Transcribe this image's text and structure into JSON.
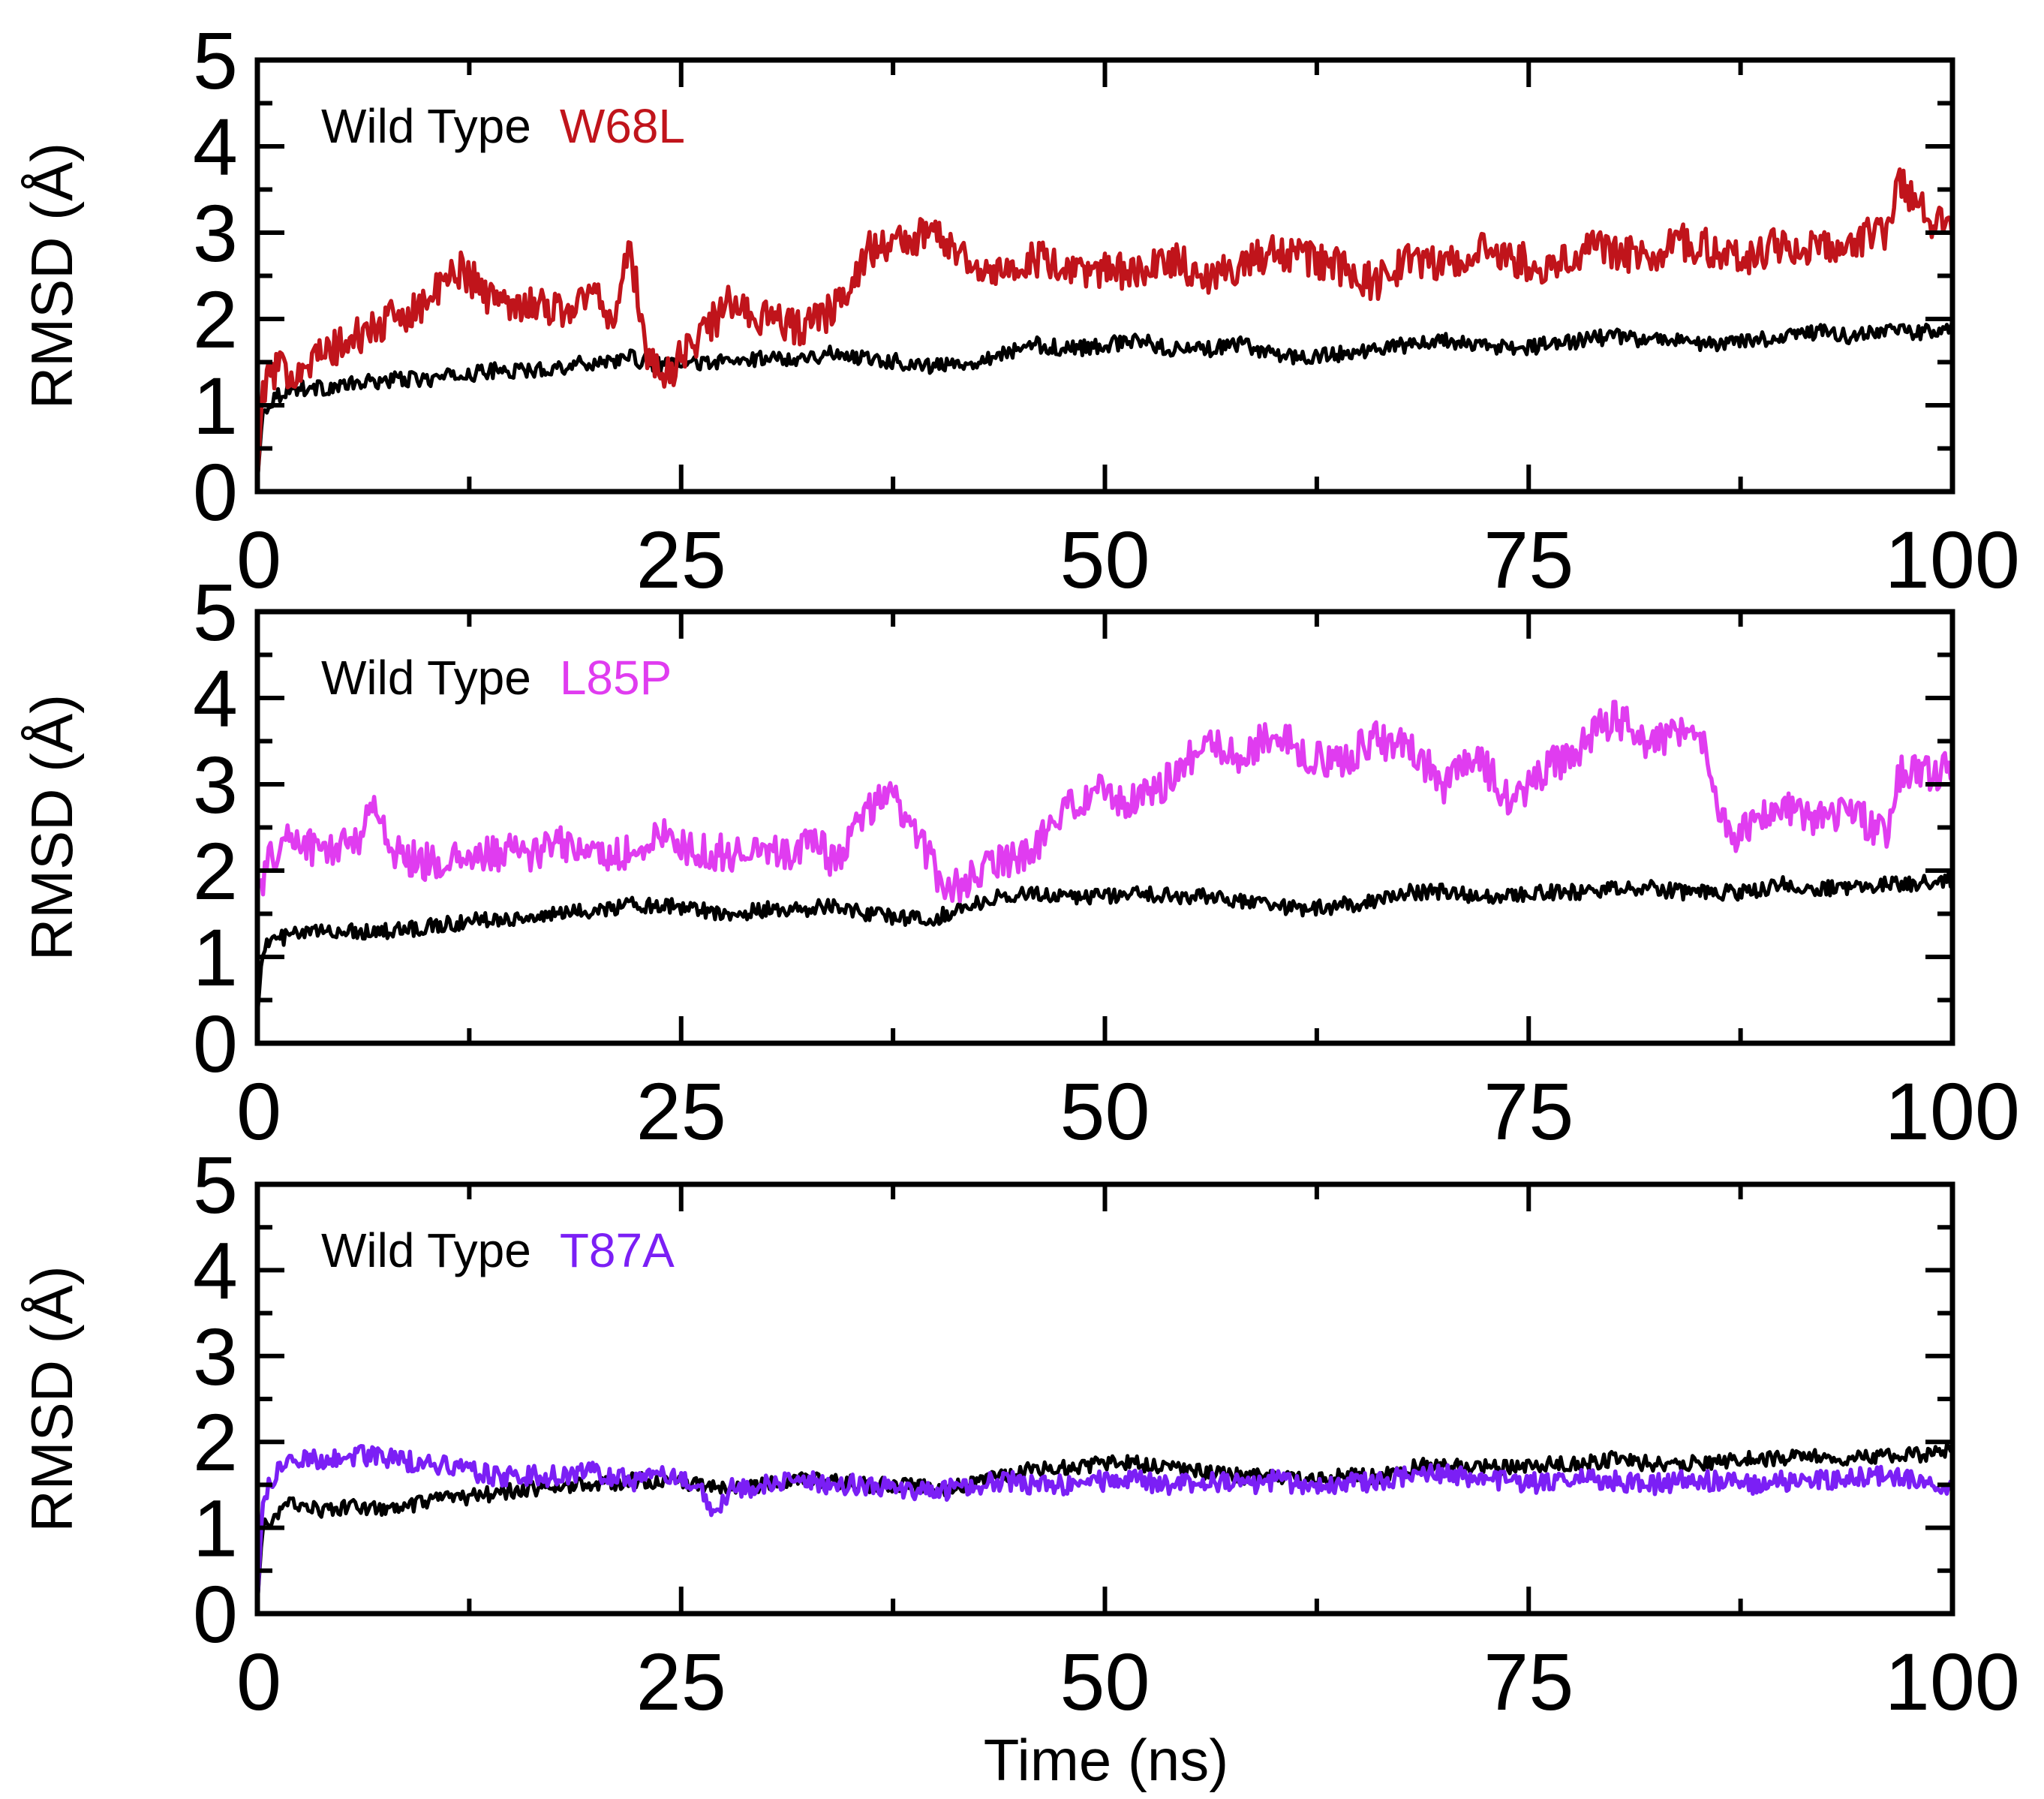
{
  "figure": {
    "xlabel": "Time (ns)"
  },
  "chart_data": [
    {
      "type": "line",
      "title": "",
      "xlabel": "",
      "ylabel": "RMSD (Å)",
      "xlim": [
        0,
        100
      ],
      "ylim": [
        0,
        5
      ],
      "xticks": [
        "0",
        "25",
        "50",
        "75",
        "100"
      ],
      "yticks": [
        "0",
        "1",
        "2",
        "3",
        "4",
        "5"
      ],
      "legend_position": "top-left",
      "grid": false,
      "series": [
        {
          "name": "Wild Type",
          "color": "#000000",
          "x": [
            0,
            0.3,
            1,
            2,
            4,
            6,
            8,
            10,
            12,
            14,
            16,
            18,
            20,
            22,
            24,
            26,
            28,
            30,
            32,
            34,
            36,
            38,
            40,
            42,
            44,
            46,
            48,
            50,
            52,
            54,
            56,
            58,
            60,
            62,
            64,
            66,
            68,
            70,
            72,
            74,
            76,
            78,
            80,
            82,
            84,
            86,
            88,
            90,
            92,
            94,
            96,
            98,
            100
          ],
          "y": [
            0.1,
            0.9,
            1.1,
            1.2,
            1.2,
            1.25,
            1.3,
            1.3,
            1.35,
            1.4,
            1.4,
            1.45,
            1.5,
            1.55,
            1.45,
            1.5,
            1.5,
            1.55,
            1.55,
            1.6,
            1.55,
            1.5,
            1.45,
            1.5,
            1.6,
            1.7,
            1.65,
            1.7,
            1.75,
            1.65,
            1.65,
            1.7,
            1.6,
            1.55,
            1.6,
            1.65,
            1.7,
            1.75,
            1.7,
            1.65,
            1.7,
            1.75,
            1.8,
            1.75,
            1.75,
            1.7,
            1.75,
            1.8,
            1.85,
            1.8,
            1.85,
            1.85,
            1.9
          ]
        },
        {
          "name": "W68L",
          "color": "#c0141b",
          "x": [
            0,
            0.3,
            1,
            2,
            4,
            6,
            8,
            10,
            12,
            14,
            16,
            18,
            20,
            21,
            22,
            23,
            24,
            26,
            28,
            30,
            32,
            34,
            36,
            38,
            40,
            42,
            44,
            46,
            48,
            50,
            52,
            54,
            56,
            58,
            60,
            62,
            64,
            66,
            68,
            70,
            72,
            74,
            76,
            78,
            80,
            82,
            84,
            86,
            88,
            90,
            92,
            94,
            96,
            97,
            98,
            99,
            100
          ],
          "y": [
            0.1,
            1.2,
            1.4,
            1.4,
            1.6,
            1.8,
            2.0,
            2.2,
            2.6,
            2.2,
            2.2,
            2.1,
            2.3,
            2.0,
            2.8,
            1.6,
            1.3,
            1.8,
            2.2,
            2.0,
            1.9,
            2.1,
            2.8,
            2.9,
            3.0,
            2.7,
            2.5,
            2.7,
            2.5,
            2.6,
            2.5,
            2.7,
            2.5,
            2.6,
            2.8,
            2.7,
            2.6,
            2.4,
            2.7,
            2.6,
            2.8,
            2.7,
            2.6,
            2.8,
            2.8,
            2.7,
            2.9,
            2.8,
            2.7,
            2.9,
            2.8,
            2.9,
            3.0,
            3.6,
            3.3,
            3.1,
            3.0
          ]
        }
      ]
    },
    {
      "type": "line",
      "title": "",
      "xlabel": "",
      "ylabel": "RMSD (Å)",
      "xlim": [
        0,
        100
      ],
      "ylim": [
        0,
        5
      ],
      "xticks": [
        "0",
        "25",
        "50",
        "75",
        "100"
      ],
      "yticks": [
        "0",
        "1",
        "2",
        "3",
        "4",
        "5"
      ],
      "legend_position": "top-left",
      "grid": false,
      "series": [
        {
          "name": "Wild Type",
          "color": "#000000",
          "x": [
            0,
            0.3,
            1,
            2,
            4,
            6,
            8,
            10,
            12,
            14,
            16,
            18,
            20,
            22,
            24,
            26,
            28,
            30,
            32,
            34,
            36,
            38,
            40,
            42,
            44,
            46,
            48,
            50,
            52,
            54,
            56,
            58,
            60,
            62,
            64,
            66,
            68,
            70,
            72,
            74,
            76,
            78,
            80,
            82,
            84,
            86,
            88,
            90,
            92,
            94,
            96,
            98,
            100
          ],
          "y": [
            0.3,
            1.1,
            1.2,
            1.25,
            1.3,
            1.3,
            1.3,
            1.35,
            1.4,
            1.45,
            1.45,
            1.5,
            1.55,
            1.6,
            1.6,
            1.55,
            1.5,
            1.55,
            1.55,
            1.6,
            1.5,
            1.45,
            1.45,
            1.6,
            1.7,
            1.75,
            1.7,
            1.7,
            1.75,
            1.7,
            1.7,
            1.65,
            1.6,
            1.55,
            1.6,
            1.65,
            1.75,
            1.75,
            1.7,
            1.7,
            1.75,
            1.75,
            1.8,
            1.8,
            1.75,
            1.75,
            1.75,
            1.85,
            1.8,
            1.8,
            1.85,
            1.85,
            1.9
          ]
        },
        {
          "name": "L85P",
          "color": "#e03cf0",
          "x": [
            0,
            1,
            2,
            4,
            6,
            7,
            8,
            10,
            12,
            14,
            16,
            18,
            20,
            22,
            24,
            26,
            28,
            30,
            32,
            33,
            34,
            36,
            37,
            38,
            40,
            41,
            42,
            44,
            46,
            48,
            50,
            52,
            54,
            56,
            58,
            60,
            62,
            64,
            66,
            68,
            70,
            72,
            74,
            76,
            78,
            79,
            80,
            82,
            84,
            85,
            86,
            87,
            88,
            90,
            92,
            94,
            96,
            97,
            98,
            100
          ],
          "y": [
            1.8,
            2.2,
            2.4,
            2.2,
            2.4,
            2.8,
            2.2,
            2.1,
            2.1,
            2.2,
            2.2,
            2.3,
            2.2,
            2.2,
            2.4,
            2.2,
            2.2,
            2.3,
            2.2,
            2.4,
            2.1,
            2.7,
            2.9,
            2.7,
            2.0,
            1.8,
            1.9,
            2.1,
            2.3,
            2.8,
            2.9,
            2.8,
            3.1,
            3.5,
            3.3,
            3.6,
            3.3,
            3.3,
            3.5,
            3.4,
            3.0,
            3.3,
            2.8,
            3.2,
            3.4,
            3.6,
            3.8,
            3.5,
            3.6,
            3.7,
            2.8,
            2.3,
            2.5,
            2.8,
            2.6,
            2.7,
            2.4,
            3.2,
            3.1,
            3.2
          ]
        }
      ]
    },
    {
      "type": "line",
      "title": "",
      "xlabel": "Time (ns)",
      "ylabel": "RMSD (Å)",
      "xlim": [
        0,
        100
      ],
      "ylim": [
        0,
        5
      ],
      "xticks": [
        "0",
        "25",
        "50",
        "75",
        "100"
      ],
      "yticks": [
        "0",
        "1",
        "2",
        "3",
        "4",
        "5"
      ],
      "legend_position": "top-left",
      "grid": false,
      "series": [
        {
          "name": "Wild Type",
          "color": "#000000",
          "x": [
            0,
            0.3,
            1,
            2,
            4,
            6,
            8,
            10,
            12,
            14,
            16,
            18,
            20,
            22,
            24,
            26,
            28,
            30,
            32,
            34,
            36,
            38,
            40,
            42,
            44,
            46,
            48,
            50,
            52,
            54,
            56,
            58,
            60,
            62,
            64,
            66,
            68,
            70,
            72,
            74,
            76,
            78,
            80,
            82,
            84,
            86,
            88,
            90,
            92,
            94,
            96,
            98,
            100
          ],
          "y": [
            0.1,
            1.0,
            1.1,
            1.3,
            1.2,
            1.25,
            1.2,
            1.3,
            1.35,
            1.4,
            1.45,
            1.5,
            1.5,
            1.55,
            1.55,
            1.5,
            1.45,
            1.5,
            1.55,
            1.55,
            1.5,
            1.5,
            1.45,
            1.5,
            1.6,
            1.7,
            1.7,
            1.75,
            1.75,
            1.7,
            1.65,
            1.6,
            1.6,
            1.55,
            1.6,
            1.6,
            1.7,
            1.75,
            1.7,
            1.7,
            1.75,
            1.75,
            1.8,
            1.75,
            1.75,
            1.75,
            1.8,
            1.8,
            1.85,
            1.8,
            1.85,
            1.85,
            1.9
          ]
        },
        {
          "name": "T87A",
          "color": "#7b1ff5",
          "x": [
            0,
            0.3,
            1,
            2,
            4,
            6,
            8,
            10,
            12,
            14,
            16,
            18,
            20,
            22,
            24,
            26,
            27,
            28,
            30,
            32,
            34,
            36,
            38,
            40,
            42,
            44,
            46,
            48,
            50,
            52,
            54,
            56,
            58,
            60,
            62,
            64,
            66,
            68,
            70,
            72,
            74,
            76,
            78,
            80,
            82,
            84,
            86,
            88,
            90,
            92,
            94,
            96,
            98,
            100
          ],
          "y": [
            0.1,
            1.3,
            1.6,
            1.8,
            1.8,
            1.85,
            1.8,
            1.75,
            1.7,
            1.6,
            1.6,
            1.6,
            1.65,
            1.55,
            1.6,
            1.5,
            1.2,
            1.45,
            1.5,
            1.55,
            1.5,
            1.5,
            1.45,
            1.4,
            1.5,
            1.55,
            1.5,
            1.5,
            1.55,
            1.55,
            1.5,
            1.55,
            1.5,
            1.55,
            1.5,
            1.5,
            1.55,
            1.6,
            1.65,
            1.55,
            1.55,
            1.5,
            1.6,
            1.55,
            1.5,
            1.55,
            1.55,
            1.5,
            1.55,
            1.55,
            1.6,
            1.6,
            1.55,
            1.5
          ]
        }
      ]
    }
  ]
}
